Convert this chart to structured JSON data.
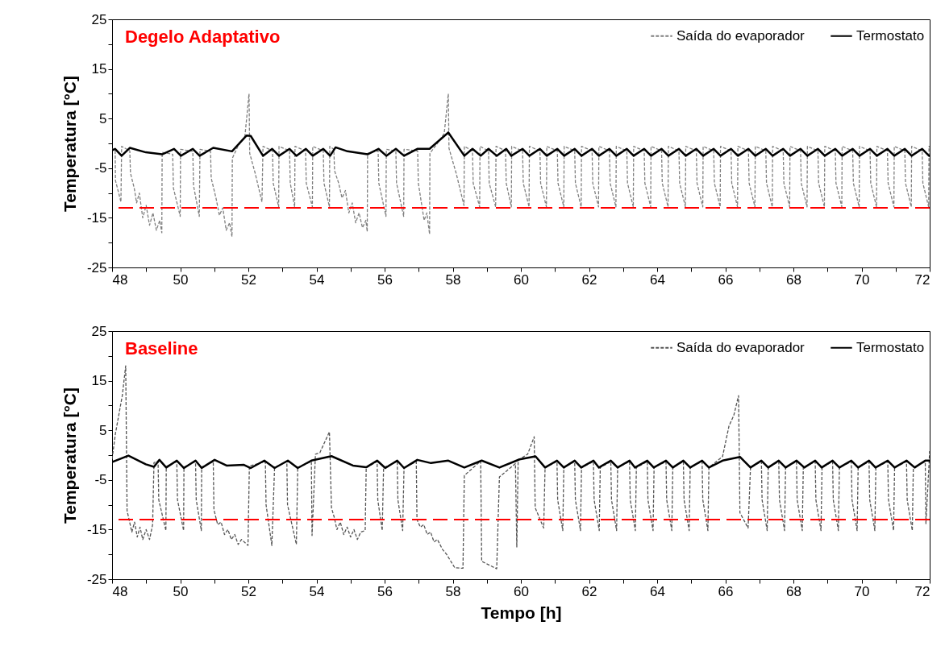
{
  "chart_data": [
    {
      "type": "line",
      "title": "Degelo Adaptativo",
      "ylabel": "Temperatura [°C]",
      "xlim": [
        48,
        72
      ],
      "ylim": [
        -25,
        25
      ],
      "xticks": [
        48,
        {
          "value": 49,
          "label": null
        },
        50,
        {
          "value": 51,
          "label": null
        },
        52,
        {
          "value": 53,
          "label": null
        },
        54,
        {
          "value": 55,
          "label": null
        },
        56,
        {
          "value": 57,
          "label": null
        },
        58,
        {
          "value": 59,
          "label": null
        },
        60,
        {
          "value": 61,
          "label": null
        },
        62,
        {
          "value": 63,
          "label": null
        },
        64,
        {
          "value": 65,
          "label": null
        },
        66,
        {
          "value": 67,
          "label": null
        },
        68,
        {
          "value": 69,
          "label": null
        },
        70,
        {
          "value": 71,
          "label": null
        },
        72
      ],
      "yticks": [
        -25,
        {
          "value": -20,
          "label": null
        },
        -15,
        {
          "value": -10,
          "label": null
        },
        -5,
        {
          "value": 0,
          "label": null
        },
        5,
        {
          "value": 10,
          "label": null
        },
        15,
        {
          "value": 20,
          "label": null
        },
        25
      ],
      "legend": "top right",
      "ref_lines": [
        {
          "axis": "y",
          "value": -13,
          "color": "#ff0000",
          "line_style": "dashed"
        }
      ],
      "series": [
        {
          "name": "Saída do evaporador",
          "color": "#7f7f7f",
          "line_style": "dashed",
          "x": [
            48.0,
            48.09,
            48.1,
            48.26,
            48.28,
            48.52,
            48.54,
            48.65,
            48.72,
            48.8,
            48.9,
            49.0,
            49.1,
            49.2,
            49.3,
            49.4,
            49.46,
            49.47,
            49.78,
            49.8,
            50.0,
            50.01,
            50.37,
            50.39,
            50.56,
            50.58,
            50.89,
            50.91,
            51.05,
            51.15,
            51.25,
            51.35,
            51.45,
            51.52,
            51.53,
            51.7,
            51.9,
            52.02,
            52.04,
            52.2,
            52.4,
            52.43,
            52.71,
            52.73,
            52.89,
            52.9,
            53.21,
            53.23,
            53.36,
            53.37,
            53.68,
            53.7,
            53.88,
            53.89,
            54.2,
            54.22,
            54.38,
            54.39,
            54.51,
            54.53,
            54.65,
            54.75,
            54.85,
            54.95,
            55.05,
            55.15,
            55.25,
            55.35,
            55.45,
            55.49,
            55.5,
            55.81,
            55.83,
            56.04,
            56.05,
            56.33,
            56.35,
            56.56,
            56.57,
            56.97,
            56.99,
            57.08,
            57.16,
            57.24,
            57.32,
            57.33,
            57.55,
            57.75,
            57.87,
            57.89,
            58.1,
            58.33,
            58.34,
            58.58,
            58.6,
            58.79,
            58.8,
            59.05,
            59.07,
            59.26,
            59.27,
            59.55,
            59.57,
            59.72,
            59.73,
            60.05,
            60.07,
            60.24,
            60.25,
            60.56,
            60.58,
            60.75,
            60.76,
            61.07,
            61.09,
            61.26,
            61.27,
            61.58,
            61.6,
            61.77,
            61.78,
            62.09,
            62.11,
            62.28,
            62.29,
            62.6,
            62.62,
            62.79,
            62.8,
            63.11,
            63.13,
            63.3,
            63.31,
            63.62,
            63.64,
            63.81,
            63.82,
            64.13,
            64.15,
            64.32,
            64.33,
            64.64,
            64.66,
            64.83,
            64.84,
            65.15,
            65.17,
            65.34,
            65.35,
            65.66,
            65.68,
            65.85,
            65.86,
            66.17,
            66.19,
            66.36,
            66.37,
            66.68,
            66.7,
            66.87,
            66.88,
            67.19,
            67.21,
            67.38,
            67.39,
            67.7,
            67.72,
            67.89,
            67.9,
            68.21,
            68.23,
            68.4,
            68.41,
            68.72,
            68.74,
            68.91,
            68.92,
            69.23,
            69.25,
            69.42,
            69.43,
            69.74,
            69.76,
            69.93,
            69.94,
            70.25,
            70.27,
            70.44,
            70.45,
            70.76,
            70.78,
            70.95,
            70.96,
            71.27,
            71.29,
            71.46,
            71.47,
            71.78,
            71.8,
            71.97,
            71.98,
            72.0
          ],
          "values": [
            -1.2,
            -1.1,
            -7.5,
            -11.8,
            -0.6,
            -1.5,
            -6,
            -9,
            -12,
            -10,
            -15,
            -12.5,
            -16.5,
            -14,
            -17.5,
            -15.5,
            -18,
            -1.8,
            -2.2,
            -9,
            -14.7,
            -1.2,
            -1.6,
            -8.5,
            -14.7,
            -1.2,
            -1.6,
            -7,
            -11,
            -14.5,
            -13,
            -17.5,
            -16,
            -18.8,
            -3,
            -0.5,
            1.5,
            10,
            -2,
            -6,
            -11.8,
            -0.6,
            -1.5,
            -8,
            -12.8,
            -0.6,
            -1.5,
            -8,
            -12.8,
            -0.6,
            -1.5,
            -8,
            -12.8,
            -0.6,
            -1.5,
            -8,
            -12.8,
            -0.6,
            -1.2,
            -5.5,
            -8,
            -11,
            -9.5,
            -14,
            -12,
            -16,
            -14,
            -17,
            -15.5,
            -17.8,
            -2,
            -1.5,
            -8,
            -14.7,
            -1.2,
            -1.5,
            -8,
            -14.7,
            -1.2,
            -1.5,
            -8,
            -12,
            -15.5,
            -14,
            -18.3,
            -2,
            0,
            2,
            10,
            -1,
            -6,
            -12.5,
            -0.6,
            -1.5,
            -8,
            -12.8,
            -0.6,
            -1.5,
            -8,
            -12.8,
            -0.6,
            -1.5,
            -8,
            -12.8,
            -0.6,
            -1.5,
            -8,
            -12.8,
            -0.6,
            -1.5,
            -8,
            -12.8,
            -0.6,
            -1.5,
            -8,
            -12.8,
            -0.6,
            -1.5,
            -8,
            -12.8,
            -0.6,
            -1.5,
            -8,
            -12.8,
            -0.6,
            -1.5,
            -8,
            -12.8,
            -0.6,
            -1.5,
            -8,
            -12.8,
            -0.6,
            -1.5,
            -8,
            -12.8,
            -0.6,
            -1.5,
            -8,
            -12.8,
            -0.6,
            -1.5,
            -8,
            -12.8,
            -0.6,
            -1.5,
            -8,
            -12.8,
            -0.6,
            -1.5,
            -8,
            -12.8,
            -0.6,
            -1.5,
            -8,
            -12.8,
            -0.6,
            -1.5,
            -8,
            -12.8,
            -0.6,
            -1.5,
            -8,
            -12.8,
            -0.6,
            -1.5,
            -8,
            -12.8,
            -0.6,
            -1.5,
            -8,
            -12.8,
            -0.6,
            -1.5,
            -8,
            -12.8,
            -0.6,
            -1.5,
            -8,
            -12.8,
            -0.6,
            -1.5,
            -8,
            -12.8,
            -0.6,
            -1.5,
            -8,
            -12.8,
            -0.6,
            -1.5,
            -8,
            -12.8,
            -0.6,
            -1.5,
            -8,
            -12.8,
            -0.6,
            -1.5,
            -8,
            -12.8,
            -0.6,
            -0.8
          ]
        },
        {
          "name": "Termostato",
          "color": "#000000",
          "line_style": "solid",
          "x": [
            48.0,
            48.09,
            48.28,
            48.52,
            48.99,
            49.47,
            49.82,
            50.02,
            50.37,
            50.57,
            50.97,
            51.52,
            51.95,
            52.07,
            52.43,
            52.7,
            52.9,
            53.21,
            53.41,
            53.69,
            53.89,
            54.2,
            54.4,
            54.56,
            54.91,
            55.5,
            55.82,
            56.05,
            56.33,
            56.57,
            56.96,
            57.32,
            57.87,
            58.34,
            58.58,
            58.82,
            59.05,
            59.29,
            59.57,
            59.72,
            60.05,
            60.25,
            60.56,
            60.76,
            61.07,
            61.27,
            61.58,
            61.78,
            62.09,
            62.29,
            62.6,
            62.8,
            63.11,
            63.31,
            63.62,
            63.82,
            64.13,
            64.33,
            64.64,
            64.84,
            65.15,
            65.35,
            65.66,
            65.86,
            66.17,
            66.37,
            66.68,
            66.88,
            67.19,
            67.39,
            67.7,
            67.9,
            68.21,
            68.41,
            68.72,
            68.92,
            69.23,
            69.43,
            69.74,
            69.94,
            70.25,
            70.45,
            70.76,
            70.96,
            71.27,
            71.47,
            71.78,
            71.98,
            72.0
          ],
          "values": [
            -1.4,
            -1.1,
            -2.5,
            -0.9,
            -1.8,
            -2.2,
            -1.1,
            -2.5,
            -1.1,
            -2.5,
            -0.9,
            -1.6,
            1.6,
            1.5,
            -2.5,
            -1.1,
            -2.5,
            -1.1,
            -2.5,
            -1.1,
            -2.5,
            -1.1,
            -2.5,
            -0.8,
            -1.6,
            -2.2,
            -1.1,
            -2.5,
            -1.1,
            -2.5,
            -1.1,
            -1.1,
            2.2,
            -2.5,
            -1.1,
            -2.5,
            -1.1,
            -2.5,
            -1.1,
            -2.5,
            -1.1,
            -2.5,
            -1.1,
            -2.5,
            -1.1,
            -2.5,
            -1.1,
            -2.5,
            -1.1,
            -2.5,
            -1.1,
            -2.5,
            -1.1,
            -2.5,
            -1.1,
            -2.5,
            -1.1,
            -2.5,
            -1.1,
            -2.5,
            -1.1,
            -2.5,
            -1.1,
            -2.5,
            -1.1,
            -2.5,
            -1.1,
            -2.5,
            -1.1,
            -2.5,
            -1.1,
            -2.5,
            -1.1,
            -2.5,
            -1.1,
            -2.5,
            -1.1,
            -2.5,
            -1.1,
            -2.5,
            -1.1,
            -2.5,
            -1.1,
            -2.5,
            -1.1,
            -2.5,
            -1.1,
            -2.5,
            -2.4
          ]
        }
      ]
    },
    {
      "type": "line",
      "title": "Baseline",
      "xlabel": "Tempo [h]",
      "ylabel": "Temperatura [°C]",
      "xlim": [
        48,
        72
      ],
      "ylim": [
        -25,
        25
      ],
      "xticks": [
        48,
        {
          "value": 49,
          "label": null
        },
        50,
        {
          "value": 51,
          "label": null
        },
        52,
        {
          "value": 53,
          "label": null
        },
        54,
        {
          "value": 55,
          "label": null
        },
        56,
        {
          "value": 57,
          "label": null
        },
        58,
        {
          "value": 59,
          "label": null
        },
        60,
        {
          "value": 61,
          "label": null
        },
        62,
        {
          "value": 63,
          "label": null
        },
        64,
        {
          "value": 65,
          "label": null
        },
        66,
        {
          "value": 67,
          "label": null
        },
        68,
        {
          "value": 69,
          "label": null
        },
        70,
        {
          "value": 71,
          "label": null
        },
        72
      ],
      "yticks": [
        -25,
        {
          "value": -20,
          "label": null
        },
        -15,
        {
          "value": -10,
          "label": null
        },
        -5,
        {
          "value": 0,
          "label": null
        },
        5,
        {
          "value": 10,
          "label": null
        },
        15,
        {
          "value": 20,
          "label": null
        },
        25
      ],
      "legend": "top right",
      "ref_lines": [
        {
          "axis": "y",
          "value": -13,
          "color": "#ff0000",
          "line_style": "dashed"
        }
      ],
      "series": [
        {
          "name": "Saída do evaporador",
          "color": "#555555",
          "line_style": "dashed",
          "x": [
            48.0,
            48.1,
            48.3,
            48.4,
            48.44,
            48.5,
            48.58,
            48.66,
            48.74,
            48.82,
            48.9,
            49.0,
            49.1,
            49.19,
            49.23,
            49.35,
            49.37,
            49.58,
            49.59,
            49.9,
            49.92,
            50.1,
            50.11,
            50.45,
            50.47,
            50.62,
            50.63,
            50.97,
            50.99,
            51.1,
            51.2,
            51.3,
            51.4,
            51.5,
            51.6,
            51.7,
            51.8,
            51.99,
            52.03,
            52.5,
            52.52,
            52.69,
            52.77,
            53.13,
            53.15,
            53.41,
            53.45,
            53.85,
            53.87,
            53.97,
            54.1,
            54.38,
            54.44,
            54.52,
            54.6,
            54.7,
            54.8,
            54.9,
            55.0,
            55.1,
            55.2,
            55.3,
            55.43,
            55.46,
            55.78,
            55.8,
            55.93,
            55.97,
            56.37,
            56.39,
            56.53,
            56.57,
            56.93,
            56.95,
            57.05,
            57.15,
            57.25,
            57.35,
            57.45,
            57.55,
            57.7,
            57.82,
            58.06,
            58.3,
            58.34,
            58.82,
            58.85,
            59.29,
            59.37,
            59.84,
            59.88,
            59.92,
            60.2,
            60.39,
            60.42,
            60.67,
            60.71,
            61.06,
            61.08,
            61.23,
            61.26,
            61.58,
            61.6,
            61.75,
            61.78,
            62.13,
            62.15,
            62.3,
            62.33,
            62.64,
            62.66,
            62.81,
            62.84,
            63.19,
            63.21,
            63.36,
            63.39,
            63.71,
            63.73,
            63.88,
            63.91,
            64.26,
            64.28,
            64.43,
            64.46,
            64.77,
            64.79,
            64.94,
            64.97,
            65.32,
            65.34,
            65.49,
            65.52,
            65.92,
            66.11,
            66.25,
            66.39,
            66.43,
            66.67,
            66.74,
            67.06,
            67.08,
            67.23,
            67.26,
            67.57,
            67.59,
            67.74,
            67.77,
            68.09,
            68.11,
            68.26,
            68.29,
            68.64,
            68.66,
            68.81,
            68.84,
            69.15,
            69.17,
            69.32,
            69.35,
            69.7,
            69.72,
            69.87,
            69.9,
            70.22,
            70.24,
            70.39,
            70.42,
            70.77,
            70.79,
            70.94,
            70.97,
            71.32,
            71.34,
            71.49,
            71.52,
            71.87,
            71.89,
            72.0
          ],
          "values": [
            -0.8,
            4.4,
            12,
            18,
            -11.2,
            -13,
            -15.5,
            -13.5,
            -16.5,
            -14.5,
            -17,
            -15,
            -17,
            -14,
            -1.5,
            -1.2,
            -9,
            -15.2,
            -2.3,
            -1.3,
            -9,
            -15.2,
            -2.4,
            -1.3,
            -9,
            -15.2,
            -2.4,
            -1.3,
            -11,
            -14,
            -13.5,
            -16,
            -15,
            -17,
            -16,
            -18,
            -17,
            -18.2,
            -2.2,
            -1.3,
            -10,
            -18.2,
            -2.5,
            -1.3,
            -10,
            -18,
            -2.5,
            -1.3,
            -16.2,
            0.2,
            0.5,
            4.7,
            -10.6,
            -12.5,
            -15,
            -13.5,
            -16,
            -14.5,
            -16.5,
            -15,
            -17,
            -15.5,
            -15.2,
            -2.5,
            -1.3,
            -9,
            -15.2,
            -2.5,
            -1.3,
            -9,
            -15.2,
            -2.5,
            -1.3,
            -13,
            -14.5,
            -14,
            -16,
            -15.5,
            -17.5,
            -17,
            -19,
            -20,
            -22.7,
            -22.8,
            -4.1,
            -1.2,
            -21.4,
            -22.9,
            -4.4,
            -1.7,
            -18.6,
            -1,
            0.2,
            3.7,
            -10.6,
            -14.7,
            -2.5,
            -1.3,
            -9,
            -15.2,
            -2.5,
            -1.3,
            -9,
            -15.2,
            -2.5,
            -1.3,
            -9,
            -15.2,
            -2.5,
            -1.3,
            -9,
            -15.2,
            -2.5,
            -1.3,
            -9,
            -15.2,
            -2.5,
            -1.3,
            -9,
            -15.2,
            -2.5,
            -1.3,
            -9,
            -15.2,
            -2.5,
            -1.3,
            -9,
            -15.2,
            -2.5,
            -1.3,
            -9,
            -15.2,
            -2.5,
            -0.3,
            5.9,
            8,
            12,
            -11.6,
            -14.7,
            -2.5,
            -1.3,
            -9,
            -15.2,
            -2.5,
            -1.3,
            -9,
            -15.2,
            -2.5,
            -1.3,
            -9,
            -15.2,
            -2.5,
            -1.3,
            -9,
            -15.2,
            -2.5,
            -1.3,
            -9,
            -15.2,
            -2.5,
            -1.3,
            -9,
            -15.2,
            -2.5,
            -1.3,
            -9,
            -15.2,
            -2.5,
            -1.3,
            -9,
            -15.2,
            -2.5,
            -1.3,
            -9,
            -15.2,
            -2.5,
            -1.3,
            -13.8,
            0.8
          ]
        },
        {
          "name": "Termostato",
          "color": "#000000",
          "line_style": "solid",
          "x": [
            48.0,
            48.48,
            48.99,
            49.23,
            49.39,
            49.59,
            49.9,
            50.11,
            50.45,
            50.63,
            51.01,
            51.36,
            51.87,
            52.07,
            52.47,
            52.77,
            53.16,
            53.45,
            53.85,
            54.44,
            55.07,
            55.46,
            55.78,
            56.02,
            56.37,
            56.57,
            56.96,
            57.36,
            57.87,
            58.34,
            58.85,
            59.37,
            59.96,
            60.43,
            60.71,
            61.06,
            61.26,
            61.58,
            61.77,
            62.13,
            62.29,
            62.64,
            62.84,
            63.19,
            63.35,
            63.71,
            63.9,
            64.26,
            64.46,
            64.77,
            64.97,
            65.32,
            65.52,
            65.92,
            66.43,
            66.74,
            67.06,
            67.26,
            67.57,
            67.77,
            68.09,
            68.32,
            68.64,
            68.83,
            69.15,
            69.35,
            69.7,
            69.9,
            70.22,
            70.41,
            70.77,
            70.97,
            71.32,
            71.56,
            71.87,
            72.0
          ],
          "values": [
            -1.4,
            -0.1,
            -1.85,
            -2.35,
            -0.95,
            -2.5,
            -1.1,
            -2.6,
            -1.1,
            -2.6,
            -0.95,
            -2.1,
            -1.95,
            -2.6,
            -1.1,
            -2.6,
            -1.1,
            -2.6,
            -1.1,
            -0.2,
            -2.1,
            -2.45,
            -1.1,
            -2.6,
            -1.1,
            -2.6,
            -0.95,
            -1.6,
            -1.1,
            -2.5,
            -1.1,
            -2.5,
            -0.85,
            -0.25,
            -2.5,
            -1.1,
            -2.5,
            -1.1,
            -2.5,
            -1.1,
            -2.5,
            -1.1,
            -2.5,
            -1.1,
            -2.5,
            -1.1,
            -2.5,
            -1.1,
            -2.5,
            -1.1,
            -2.5,
            -1.1,
            -2.5,
            -1.1,
            -0.35,
            -2.5,
            -1.1,
            -2.5,
            -1.1,
            -2.5,
            -1.1,
            -2.5,
            -1.1,
            -2.5,
            -1.1,
            -2.5,
            -1.1,
            -2.5,
            -1.1,
            -2.5,
            -1.1,
            -2.5,
            -1.1,
            -2.5,
            -1.1,
            -1.1
          ]
        }
      ]
    }
  ]
}
